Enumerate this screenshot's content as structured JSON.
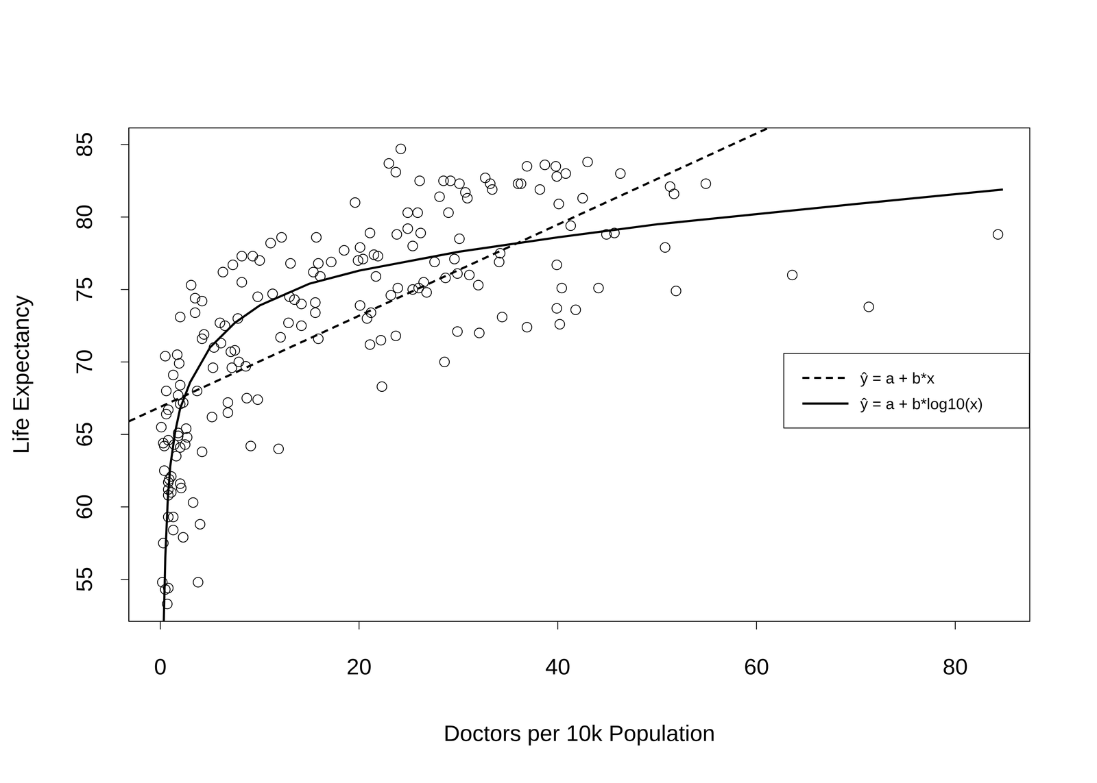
{
  "chart_data": {
    "type": "scatter",
    "x_label": "Doctors per 10k Population",
    "y_label": "Life Expectancy",
    "xlim": [
      -3.17,
      87.5
    ],
    "ylim": [
      52.1,
      86.15
    ],
    "xticks": [
      0,
      20,
      40,
      60,
      80
    ],
    "yticks": [
      55,
      60,
      65,
      70,
      75,
      80,
      85
    ],
    "legend": "right",
    "series": [
      {
        "type": "scatter",
        "marker": "circle",
        "color": "#000000",
        "x": [
          0.5,
          0.6,
          0.6,
          0.8,
          0.1,
          0.3,
          0.4,
          0.8,
          0.4,
          0.9,
          0.8,
          1.1,
          0.8,
          0.8,
          1.1,
          0.8,
          1.3,
          0.3,
          1.3,
          0.2,
          0.5,
          0.8,
          0.7,
          1.7,
          1.9,
          1.3,
          2.0,
          2.0,
          1.8,
          2.0,
          2.3,
          1.8,
          1.8,
          2.6,
          2.7,
          2.5,
          2.0,
          1.4,
          1.6,
          2.0,
          2.1,
          2.3,
          3.3,
          4.0,
          3.8,
          4.2,
          3.7,
          3.1,
          3.5,
          4.2,
          3.5,
          4.4,
          4.2,
          5.2,
          5.3,
          5.4,
          6.0,
          6.1,
          6.5,
          6.3,
          7.3,
          8.2,
          9.3,
          10.0,
          8.2,
          6.8,
          6.8,
          7.1,
          7.5,
          7.2,
          7.9,
          8.6,
          7.8,
          8.7,
          9.1,
          9.8,
          9.8,
          11.1,
          12.2,
          11.3,
          12.1,
          11.9,
          12.9,
          13.1,
          13.0,
          13.5,
          14.2,
          14.2,
          15.4,
          15.7,
          15.6,
          15.6,
          15.9,
          16.1,
          15.9,
          17.2,
          18.5,
          19.6,
          19.9,
          20.1,
          20.4,
          20.1,
          21.1,
          21.2,
          20.8,
          21.1,
          21.5,
          21.9,
          21.7,
          22.2,
          22.3,
          23.0,
          23.7,
          24.2,
          23.2,
          23.8,
          23.9,
          23.7,
          24.9,
          24.9,
          25.4,
          25.4,
          25.9,
          26.1,
          26.2,
          26.0,
          26.5,
          26.8,
          27.6,
          28.1,
          28.5,
          29.2,
          29.0,
          28.7,
          28.6,
          29.6,
          29.9,
          30.1,
          30.1,
          30.7,
          30.9,
          29.9,
          31.1,
          32.0,
          32.1,
          32.7,
          33.2,
          33.4,
          34.2,
          34.1,
          34.4,
          36.0,
          36.3,
          36.9,
          36.9,
          38.2,
          38.7,
          39.8,
          39.9,
          40.8,
          40.1,
          41.3,
          39.9,
          40.4,
          39.9,
          40.2,
          41.8,
          43.0,
          42.5,
          44.1,
          44.9,
          45.7,
          46.3,
          50.8,
          51.3,
          51.7,
          51.9,
          54.9,
          63.6,
          71.3,
          84.3
        ],
        "values": [
          70.4,
          68.0,
          66.4,
          66.7,
          65.5,
          64.4,
          64.2,
          64.6,
          62.5,
          61.9,
          61.7,
          62.1,
          61.2,
          60.8,
          61.0,
          59.3,
          59.3,
          57.5,
          58.4,
          54.8,
          54.3,
          54.4,
          53.3,
          70.5,
          69.9,
          69.1,
          73.1,
          68.4,
          67.7,
          67.1,
          67.2,
          65.1,
          64.9,
          65.4,
          64.8,
          64.3,
          64.1,
          64.3,
          63.5,
          61.6,
          61.3,
          57.9,
          60.3,
          58.8,
          54.8,
          63.8,
          68.0,
          75.3,
          74.4,
          74.2,
          73.4,
          71.9,
          71.6,
          66.2,
          69.6,
          71.0,
          72.7,
          71.3,
          72.5,
          76.2,
          76.7,
          77.3,
          77.3,
          77.0,
          75.5,
          67.2,
          66.5,
          70.7,
          70.8,
          69.6,
          70.0,
          69.7,
          73.0,
          67.5,
          64.2,
          67.4,
          74.5,
          78.2,
          78.6,
          74.7,
          71.7,
          64.0,
          72.7,
          76.8,
          74.5,
          74.3,
          74.0,
          72.5,
          76.2,
          78.6,
          74.1,
          73.4,
          76.8,
          75.9,
          71.6,
          76.9,
          77.7,
          81.0,
          77.0,
          77.9,
          77.1,
          73.9,
          78.9,
          73.4,
          73.0,
          71.2,
          77.4,
          77.3,
          75.9,
          71.5,
          68.3,
          83.7,
          83.1,
          84.7,
          74.6,
          78.8,
          75.1,
          71.8,
          80.3,
          79.2,
          78.0,
          75.0,
          80.3,
          82.5,
          78.9,
          75.1,
          75.5,
          74.8,
          76.9,
          81.4,
          82.5,
          82.5,
          80.3,
          75.8,
          70.0,
          77.1,
          76.1,
          78.5,
          82.3,
          81.7,
          81.3,
          72.1,
          76.0,
          75.3,
          72.0,
          82.7,
          82.3,
          81.9,
          77.5,
          76.9,
          73.1,
          82.3,
          82.3,
          83.5,
          72.4,
          81.9,
          83.6,
          83.5,
          82.8,
          83.0,
          80.9,
          79.4,
          76.7,
          75.1,
          73.7,
          72.6,
          73.6,
          83.8,
          81.3,
          75.1,
          78.8,
          78.9,
          83.0,
          77.9,
          82.1,
          81.6,
          74.9,
          82.3,
          76.0,
          73.8,
          78.8
        ]
      },
      {
        "type": "line",
        "name": "ŷ = a + b*x",
        "line_style": "dashed",
        "color": "#000000",
        "x": [
          -3.17,
          61.2
        ],
        "values": [
          65.9,
          86.15
        ]
      },
      {
        "type": "line",
        "name": "ŷ = a + b*log10(x)",
        "line_style": "solid",
        "color": "#000000",
        "x": [
          0.35,
          0.5,
          0.75,
          1,
          1.5,
          2,
          3,
          5,
          7.5,
          10,
          15,
          20,
          30,
          40,
          50,
          60,
          70,
          84.8
        ],
        "values": [
          52.1,
          56.5,
          60.5,
          62.8,
          65.2,
          66.8,
          68.6,
          71.0,
          72.7,
          73.9,
          75.4,
          76.3,
          77.6,
          78.6,
          79.5,
          80.2,
          80.9,
          81.9
        ]
      }
    ]
  }
}
